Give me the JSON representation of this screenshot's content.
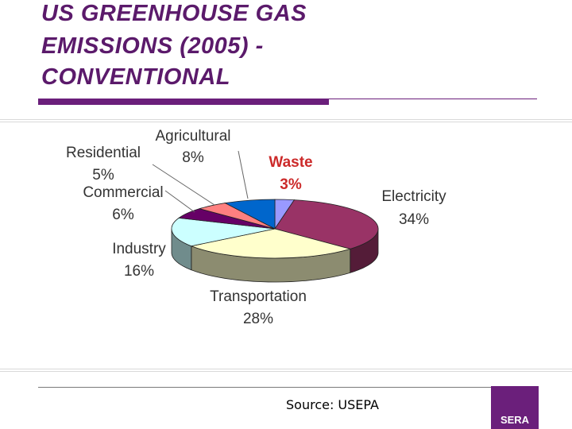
{
  "slide": {
    "title_lines": [
      "US GREENHOUSE GAS",
      "EMISSIONS (2005) -",
      "CONVENTIONAL"
    ],
    "source": "Source: USEPA",
    "logo_text": "SERA"
  },
  "chart_data": {
    "type": "pie",
    "title": "",
    "slices": [
      {
        "name": "Waste",
        "value": 3,
        "label": "3%",
        "color": "#9999ff",
        "highlight_color": "#cc2a2a"
      },
      {
        "name": "Electricity",
        "value": 34,
        "label": "34%",
        "color": "#993366"
      },
      {
        "name": "Transportation",
        "value": 28,
        "label": "28%",
        "color": "#ffffcc"
      },
      {
        "name": "Industry",
        "value": 16,
        "label": "16%",
        "color": "#ccffff"
      },
      {
        "name": "Commercial",
        "value": 6,
        "label": "6%",
        "color": "#660066"
      },
      {
        "name": "Residential",
        "value": 5,
        "label": "5%",
        "color": "#ff8080"
      },
      {
        "name": "Agricultural",
        "value": 8,
        "label": "8%",
        "color": "#0066cc"
      }
    ],
    "start_slice": "Waste",
    "direction": "clockwise",
    "style": "3d-perspective"
  }
}
